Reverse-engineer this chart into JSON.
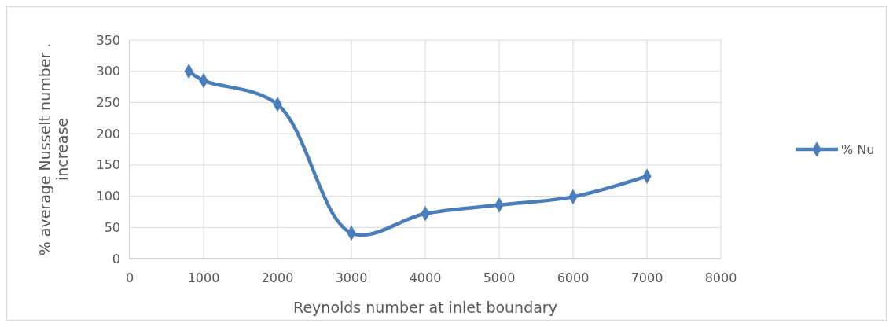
{
  "chart_data": {
    "type": "line",
    "xlabel": "Reynolds number at inlet boundary",
    "ylabel": "% average Nusselt number . increase",
    "x": [
      800,
      1000,
      2000,
      3000,
      4000,
      5000,
      6000,
      7000
    ],
    "series": [
      {
        "name": "% Nu",
        "color": "#4a7ebb",
        "values": [
          300,
          285,
          247,
          41,
          72,
          86,
          99,
          132
        ]
      }
    ],
    "xlim": [
      0,
      8000
    ],
    "xticks": [
      0,
      1000,
      2000,
      3000,
      4000,
      5000,
      6000,
      7000,
      8000
    ],
    "ylim": [
      0,
      350
    ],
    "yticks": [
      0,
      50,
      100,
      150,
      200,
      250,
      300,
      350
    ],
    "grid": true,
    "legend": "right",
    "marker": "diamond",
    "line_style": "solid"
  }
}
